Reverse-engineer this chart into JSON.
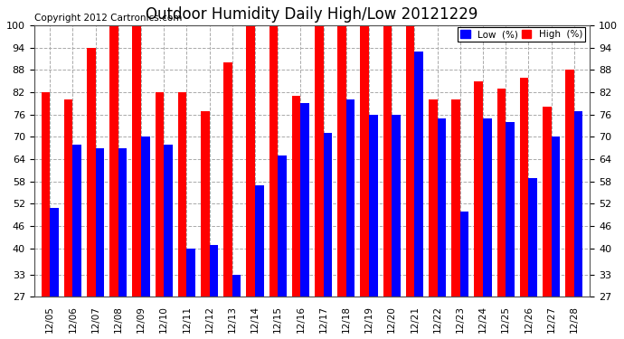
{
  "title": "Outdoor Humidity Daily High/Low 20121229",
  "copyright": "Copyright 2012 Cartronics.com",
  "dates": [
    "12/05",
    "12/06",
    "12/07",
    "12/08",
    "12/09",
    "12/10",
    "12/11",
    "12/12",
    "12/13",
    "12/14",
    "12/15",
    "12/16",
    "12/17",
    "12/18",
    "12/19",
    "12/20",
    "12/21",
    "12/22",
    "12/23",
    "12/24",
    "12/25",
    "12/26",
    "12/27",
    "12/28"
  ],
  "high": [
    82,
    80,
    94,
    100,
    100,
    82,
    82,
    77,
    90,
    100,
    100,
    81,
    100,
    100,
    100,
    100,
    100,
    80,
    80,
    85,
    83,
    86,
    78,
    88
  ],
  "low": [
    51,
    68,
    67,
    67,
    70,
    68,
    40,
    41,
    33,
    57,
    65,
    79,
    71,
    80,
    76,
    76,
    93,
    75,
    50,
    75,
    74,
    59,
    70,
    77
  ],
  "high_color": "#ff0000",
  "low_color": "#0000ff",
  "bg_color": "#ffffff",
  "grid_color": "#aaaaaa",
  "yticks": [
    27,
    33,
    40,
    46,
    52,
    58,
    64,
    70,
    76,
    82,
    88,
    94,
    100
  ],
  "ymin": 27,
  "ymax": 100,
  "legend_low_label": "Low  (%)",
  "legend_high_label": "High  (%)",
  "title_fontsize": 12,
  "copyright_fontsize": 7.5,
  "bar_bottom": 27
}
